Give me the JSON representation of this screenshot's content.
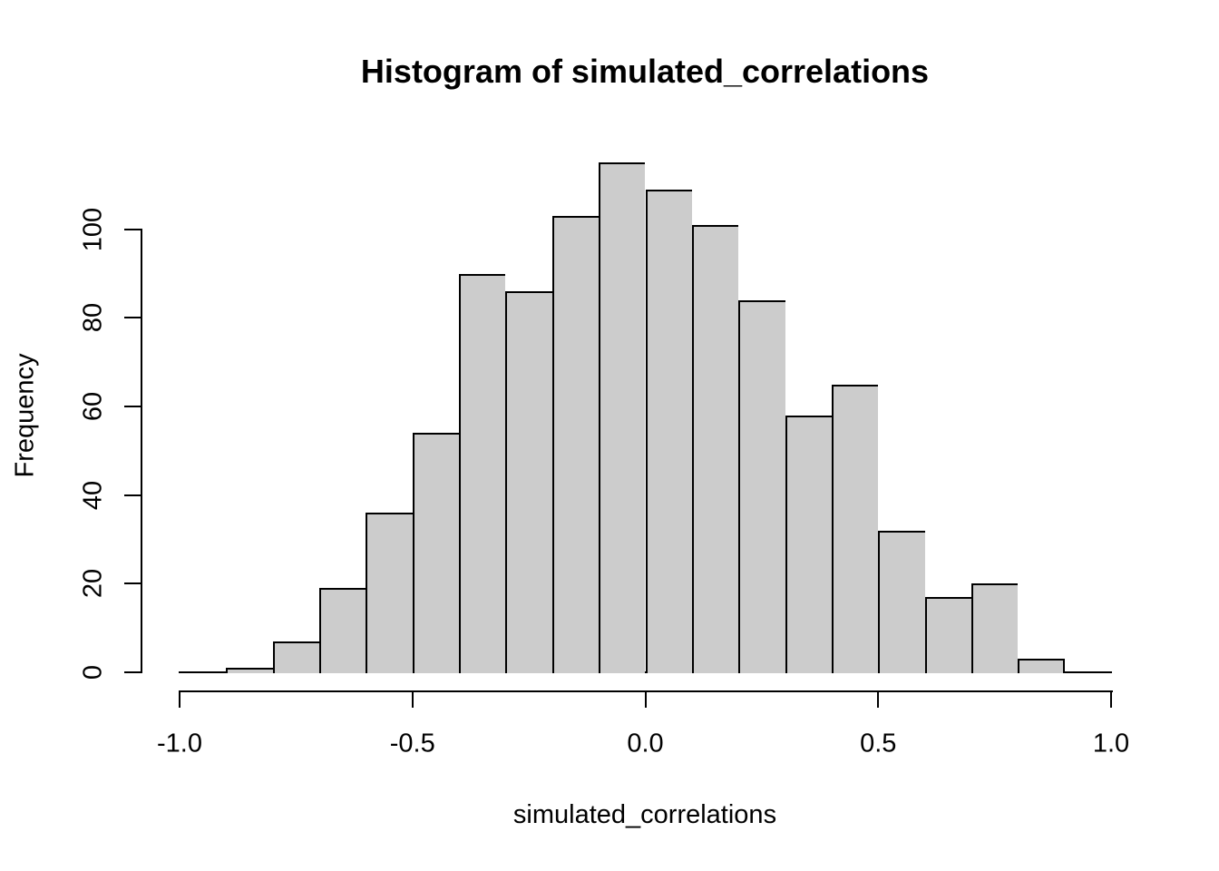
{
  "chart_data": {
    "type": "bar",
    "subtype": "histogram",
    "title": "Histogram of simulated_correlations",
    "xlabel": "simulated_correlations",
    "ylabel": "Frequency",
    "breaks": [
      -0.9,
      -0.8,
      -0.7,
      -0.6,
      -0.5,
      -0.4,
      -0.3,
      -0.2,
      -0.1,
      0.0,
      0.1,
      0.2,
      0.3,
      0.4,
      0.5,
      0.6,
      0.7,
      0.8,
      0.9
    ],
    "bin_width": 0.1,
    "counts": [
      1,
      7,
      19,
      36,
      54,
      90,
      86,
      103,
      115,
      109,
      101,
      84,
      58,
      65,
      32,
      17,
      20,
      3
    ],
    "total_observations": 1000,
    "xlim": [
      -1.0,
      1.0
    ],
    "ylim": [
      0,
      100
    ],
    "x_ticks": [
      -1.0,
      -0.5,
      0.0,
      0.5,
      1.0
    ],
    "x_tick_labels": [
      "-1.0",
      "-0.5",
      "0.0",
      "0.5",
      "1.0"
    ],
    "y_ticks": [
      0,
      20,
      40,
      60,
      80,
      100
    ],
    "y_tick_labels": [
      "0",
      "20",
      "40",
      "60",
      "80",
      "100"
    ],
    "grid": false,
    "legend": null,
    "bar_fill": "#CCCCCC",
    "bar_stroke": "#000000",
    "axis_color": "#000000",
    "background": "#FFFFFF"
  }
}
